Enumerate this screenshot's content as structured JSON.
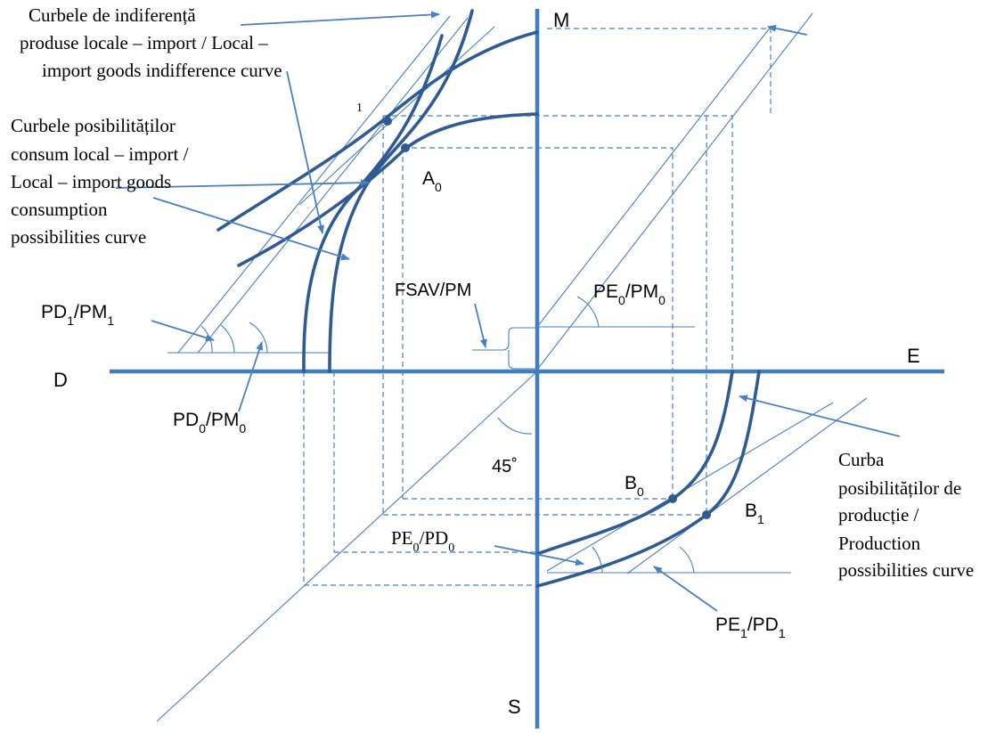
{
  "axes": {
    "top": "M",
    "bottom": "S",
    "left": "D",
    "right": "E"
  },
  "labels": {
    "indifference_curves": [
      "Curbele de indiferență",
      "produse locale – import / Local –",
      "import goods indifference curve"
    ],
    "consumption_curves": [
      "Curbele posibilităților",
      "consum local – import /",
      "Local – import goods",
      "consumption",
      "possibilities curve"
    ],
    "production_curve": [
      "Curba",
      "posibilităților de",
      "producție /",
      "Production",
      "possibilities curve"
    ],
    "one_mark": "1",
    "angle_45": "45˚",
    "fsav": "FSAV/PM"
  },
  "points": {
    "A0": {
      "base": "A",
      "sub": "0"
    },
    "B0": {
      "base": "B",
      "sub": "0"
    },
    "B1": {
      "base": "B",
      "sub": "1"
    }
  },
  "ratios": {
    "pd1_pm1": {
      "a": "PD",
      "a_sub": "1",
      "sep": "/",
      "b": "PM",
      "b_sub": "1"
    },
    "pd0_pm0": {
      "a": "PD",
      "a_sub": "0",
      "sep": "/",
      "b": "PM",
      "b_sub": "0"
    },
    "pe0_pm0": {
      "a": "PE",
      "a_sub": "0",
      "sep": "/",
      "b": "PM",
      "b_sub": "0"
    },
    "pe0_pd0": {
      "a": "PE",
      "a_sub": "0",
      "sep": "/",
      "b": "PD",
      "b_sub": "0"
    },
    "pe1_pd1": {
      "a": "PE",
      "a_sub": "1",
      "sep": "/",
      "b": "PD",
      "b_sub": "1"
    }
  },
  "colors": {
    "axis": "#3f7fc0",
    "curve": "#2f5a93",
    "line": "#4a7fc1"
  }
}
